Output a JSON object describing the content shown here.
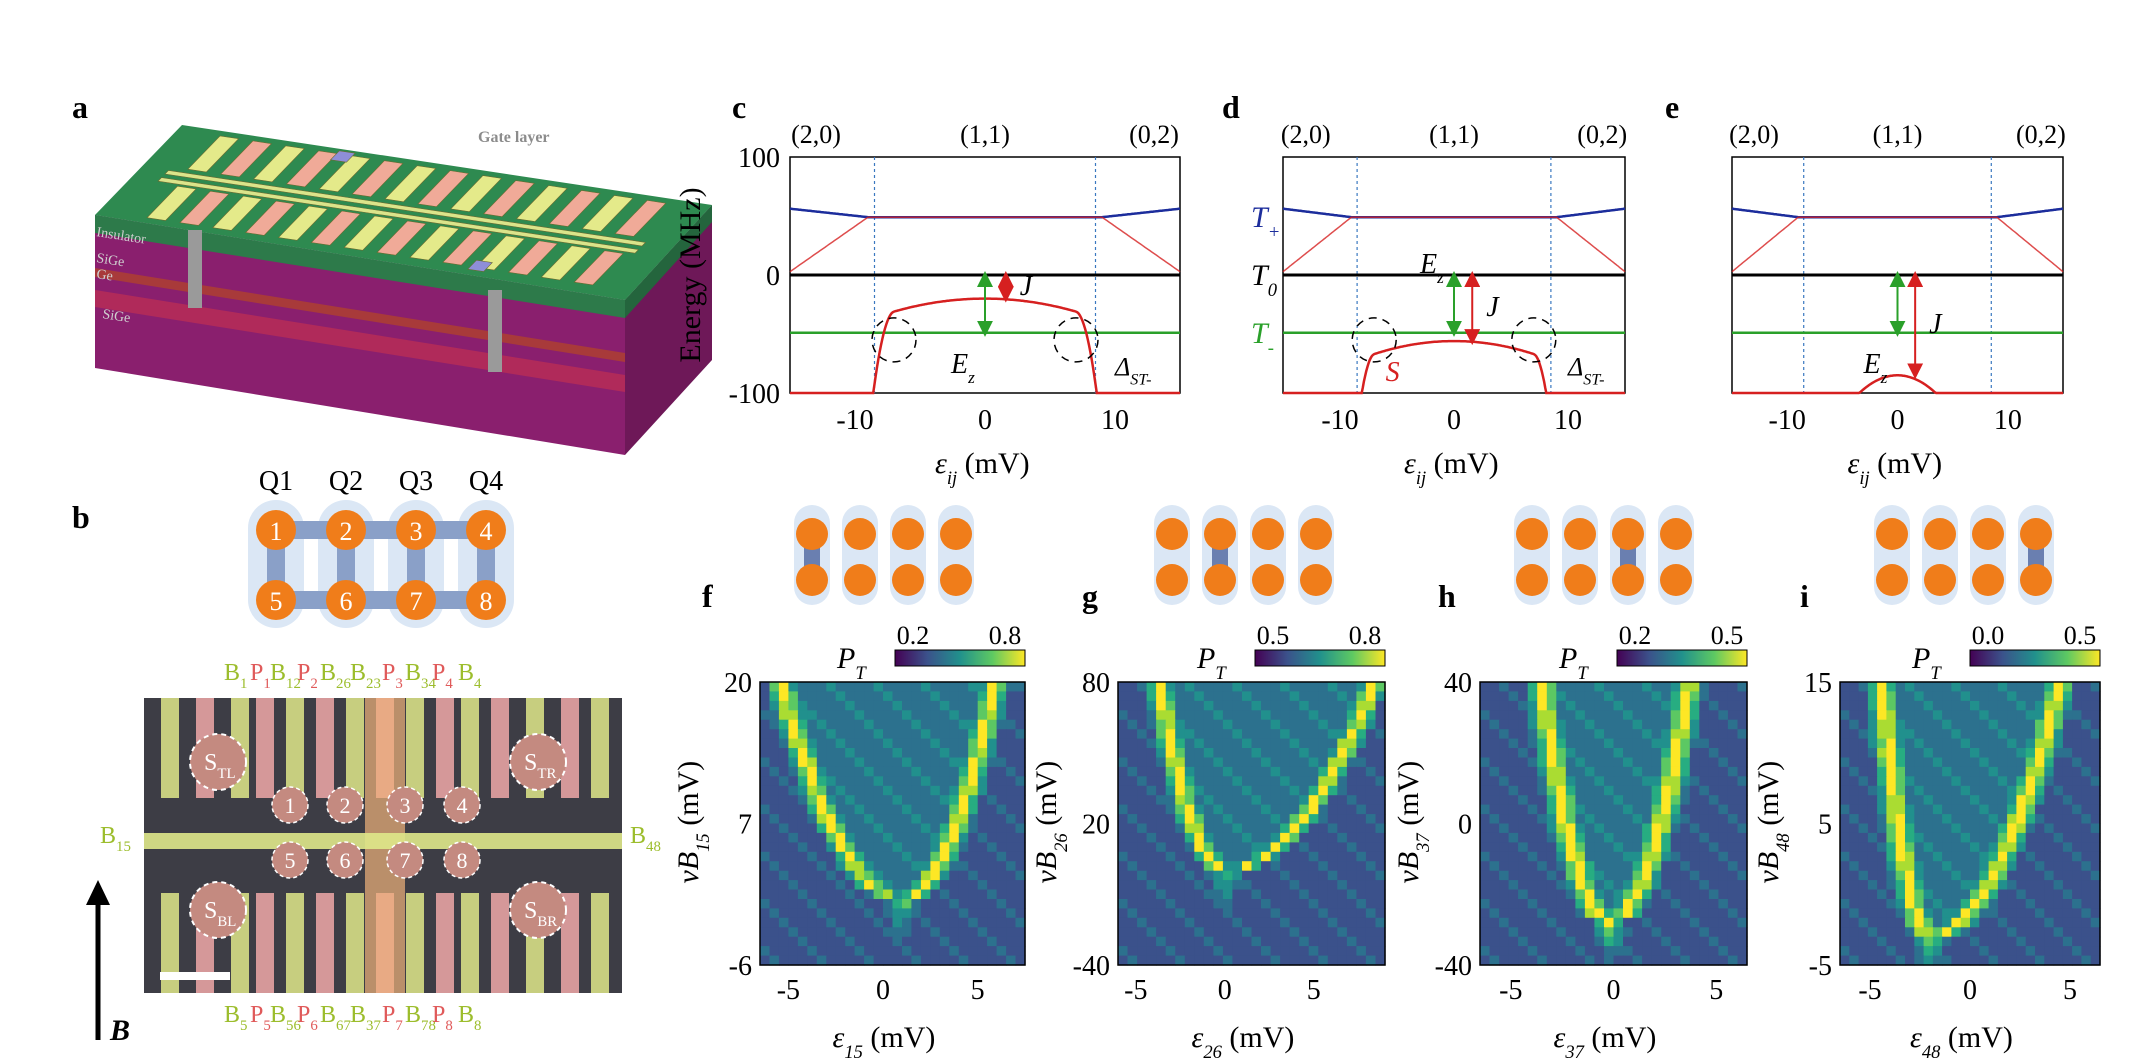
{
  "panel_labels": {
    "a": "a",
    "b": "b",
    "c": "c",
    "d": "d",
    "e": "e",
    "f": "f",
    "g": "g",
    "h": "h",
    "i": "i"
  },
  "panel_a": {
    "layers": {
      "gate": "Gate layer",
      "insulator": "Insulator",
      "sige_top": "SiGe",
      "ge": "Ge",
      "sige_bottom": "SiGe"
    }
  },
  "panel_b": {
    "qubit_labels": [
      "Q1",
      "Q2",
      "Q3",
      "Q4"
    ],
    "dots_top": [
      "1",
      "2",
      "3",
      "4"
    ],
    "dots_bottom": [
      "5",
      "6",
      "7",
      "8"
    ],
    "gates_top": [
      {
        "t": "B",
        "s": "1",
        "c": "#9cbd2c"
      },
      {
        "t": "P",
        "s": "1",
        "c": "#e05a5a"
      },
      {
        "t": "B",
        "s": "12",
        "c": "#9cbd2c"
      },
      {
        "t": "P",
        "s": "2",
        "c": "#e05a5a"
      },
      {
        "t": "B",
        "s": "26",
        "c": "#9cbd2c"
      },
      {
        "t": "B",
        "s": "23",
        "c": "#9cbd2c"
      },
      {
        "t": "P",
        "s": "3",
        "c": "#e05a5a"
      },
      {
        "t": "B",
        "s": "34",
        "c": "#9cbd2c"
      },
      {
        "t": "P",
        "s": "4",
        "c": "#e05a5a"
      },
      {
        "t": "B",
        "s": "4",
        "c": "#9cbd2c"
      }
    ],
    "gates_bottom": [
      {
        "t": "B",
        "s": "5",
        "c": "#9cbd2c"
      },
      {
        "t": "P",
        "s": "5",
        "c": "#e05a5a"
      },
      {
        "t": "B",
        "s": "56",
        "c": "#9cbd2c"
      },
      {
        "t": "P",
        "s": "6",
        "c": "#e05a5a"
      },
      {
        "t": "B",
        "s": "67",
        "c": "#9cbd2c"
      },
      {
        "t": "B",
        "s": "37",
        "c": "#9cbd2c"
      },
      {
        "t": "P",
        "s": "7",
        "c": "#e05a5a"
      },
      {
        "t": "B",
        "s": "78",
        "c": "#9cbd2c"
      },
      {
        "t": "P",
        "s": "8",
        "c": "#e05a5a"
      },
      {
        "t": "B",
        "s": "8",
        "c": "#9cbd2c"
      }
    ],
    "side_left": {
      "t": "B",
      "s": "15"
    },
    "side_right": {
      "t": "B",
      "s": "48"
    },
    "sensors": [
      {
        "t": "S",
        "s": "TL"
      },
      {
        "t": "S",
        "s": "TR"
      },
      {
        "t": "S",
        "s": "BL"
      },
      {
        "t": "S",
        "s": "BR"
      }
    ],
    "field_label": "B",
    "colors": {
      "orange": "#f07d1a",
      "bar": "#8aa0c8",
      "shade": "#dbe7f5",
      "barrier": "#dfe88a",
      "plunger": "#f0a8a8"
    }
  },
  "chart_data": [
    {
      "panel": "c",
      "type": "line",
      "title": "",
      "xlabel": "ε_ij (mV)",
      "ylabel": "Energy (MHz)",
      "xlim": [
        -15,
        15
      ],
      "ylim": [
        -100,
        100
      ],
      "xticks": [
        "-10",
        "0",
        "10"
      ],
      "yticks": [
        "100",
        "0",
        "-100"
      ],
      "charge_states": [
        "(2,0)",
        "(1,1)",
        "(0,2)"
      ],
      "annotations": {
        "J": "J",
        "Ez": "E",
        "Ez_sub": "z",
        "delta": "Δ",
        "delta_sub": "ST-"
      },
      "series": [
        {
          "name": "T+",
          "color": "#1c2d9c",
          "level": 49
        },
        {
          "name": "T0",
          "color": "#000000",
          "level": 0
        },
        {
          "name": "T-",
          "color": "#2aa02a",
          "level": -49
        },
        {
          "name": "S",
          "color": "#d62020",
          "peak": -20
        }
      ]
    },
    {
      "panel": "d",
      "type": "line",
      "xlabel": "ε_ij (mV)",
      "xlim": [
        -15,
        15
      ],
      "ylim": [
        -100,
        100
      ],
      "xticks": [
        "-10",
        "0",
        "10"
      ],
      "charge_states": [
        "(2,0)",
        "(1,1)",
        "(0,2)"
      ],
      "state_labels": {
        "Tp": "T",
        "Tp_sub": "+",
        "T0": "T",
        "T0_sub": "0",
        "Tm": "T",
        "Tm_sub": "-",
        "S": "S"
      },
      "annotations": {
        "J": "J",
        "Ez": "E",
        "Ez_sub": "z",
        "delta": "Δ",
        "delta_sub": "ST-"
      },
      "series": [
        {
          "name": "T+",
          "color": "#1c2d9c",
          "level": 49
        },
        {
          "name": "T0",
          "color": "#000000",
          "level": 0
        },
        {
          "name": "T-",
          "color": "#2aa02a",
          "level": -49
        },
        {
          "name": "S",
          "color": "#d62020",
          "peak": -56
        }
      ]
    },
    {
      "panel": "e",
      "type": "line",
      "xlabel": "ε_ij (mV)",
      "xlim": [
        -15,
        15
      ],
      "ylim": [
        -100,
        100
      ],
      "xticks": [
        "-10",
        "0",
        "10"
      ],
      "charge_states": [
        "(2,0)",
        "(1,1)",
        "(0,2)"
      ],
      "annotations": {
        "J": "J",
        "Ez": "E",
        "Ez_sub": "z"
      },
      "series": [
        {
          "name": "T+",
          "color": "#1c2d9c",
          "level": 49
        },
        {
          "name": "T0",
          "color": "#000000",
          "level": 0
        },
        {
          "name": "T-",
          "color": "#2aa02a",
          "level": -49
        },
        {
          "name": "S",
          "color": "#d62020",
          "peak": -85
        }
      ]
    },
    {
      "panel": "f",
      "type": "heatmap",
      "colorbar_label": "P",
      "colorbar_sub": "T",
      "colorbar_ticks": [
        "0.2",
        "0.8"
      ],
      "xlabel": "ε",
      "xsub": "15",
      "xunit": " (mV)",
      "ylabel": "vB",
      "ysub": "15",
      "yunit": " (mV)",
      "xlim": [
        -6.5,
        7.5
      ],
      "ylim": [
        -6,
        20
      ],
      "xticks": [
        "-5",
        "0",
        "5"
      ],
      "yticks": [
        "20",
        "7",
        "-6"
      ],
      "vertex": [
        1.0,
        0.0
      ],
      "left_branch": [
        -5.5,
        20
      ],
      "right_branch": [
        6.0,
        20
      ]
    },
    {
      "panel": "g",
      "type": "heatmap",
      "colorbar_label": "P",
      "colorbar_sub": "T",
      "colorbar_ticks": [
        "0.5",
        "0.8"
      ],
      "xlabel": "ε",
      "xsub": "26",
      "xunit": " (mV)",
      "ylabel": "vB",
      "ysub": "26",
      "yunit": " (mV)",
      "xlim": [
        -6,
        9
      ],
      "ylim": [
        -40,
        80
      ],
      "xticks": [
        "-5",
        "0",
        "5"
      ],
      "yticks": [
        "80",
        "20",
        "-40"
      ],
      "vertex": [
        0.0,
        0.0
      ],
      "left_branch": [
        -3.8,
        80
      ],
      "right_branch": [
        8.5,
        80
      ]
    },
    {
      "panel": "h",
      "type": "heatmap",
      "colorbar_label": "P",
      "colorbar_sub": "T",
      "colorbar_ticks": [
        "0.2",
        "0.5"
      ],
      "xlabel": "ε",
      "xsub": "37",
      "xunit": " (mV)",
      "ylabel": "vB",
      "ysub": "37",
      "yunit": " (mV)",
      "xlim": [
        -6.5,
        6.5
      ],
      "ylim": [
        -40,
        40
      ],
      "xticks": [
        "-5",
        "0",
        "5"
      ],
      "yticks": [
        "40",
        "0",
        "-40"
      ],
      "vertex": [
        -0.2,
        -28
      ],
      "left_branch": [
        -3.6,
        40
      ],
      "right_branch": [
        3.8,
        40
      ]
    },
    {
      "panel": "i",
      "type": "heatmap",
      "colorbar_label": "P",
      "colorbar_sub": "T",
      "colorbar_ticks": [
        "0.0",
        "0.5"
      ],
      "xlabel": "ε",
      "xsub": "48",
      "xunit": " (mV)",
      "ylabel": "vB",
      "ysub": "48",
      "yunit": " (mV)",
      "xlim": [
        -6.5,
        6.5
      ],
      "ylim": [
        -5,
        15
      ],
      "xticks": [
        "-5",
        "0",
        "5"
      ],
      "yticks": [
        "15",
        "5",
        "-5"
      ],
      "vertex": [
        -2.0,
        -3
      ],
      "left_branch": [
        -4.5,
        15
      ],
      "right_branch": [
        4.6,
        15
      ]
    }
  ]
}
